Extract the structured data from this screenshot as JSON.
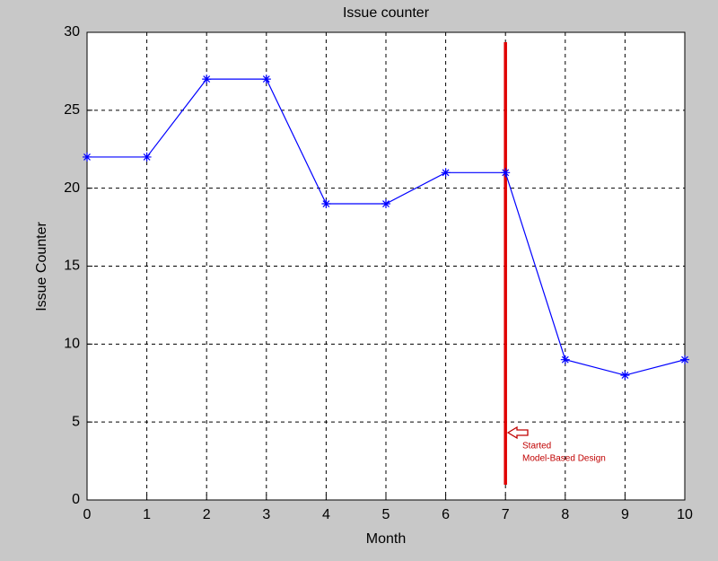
{
  "chart_data": {
    "type": "line",
    "title": "Issue counter",
    "x_label": "Month",
    "y_label": "Issue Counter",
    "x": [
      0,
      1,
      2,
      3,
      4,
      5,
      6,
      7,
      8,
      9,
      10
    ],
    "series": [
      {
        "name": "Issue Counter",
        "color": "#0000ff",
        "values": [
          22,
          22,
          27,
          27,
          19,
          19,
          21,
          21,
          9,
          8,
          9
        ]
      }
    ],
    "xlim": [
      0,
      10
    ],
    "xticks": [
      0,
      1,
      2,
      3,
      4,
      5,
      6,
      7,
      8,
      9,
      10
    ],
    "ylim": [
      0,
      30
    ],
    "yticks": [
      0,
      5,
      10,
      15,
      20,
      25,
      30
    ],
    "grid": true,
    "vline": {
      "x": 7,
      "color": "#e00000"
    },
    "annotation": [
      "Started",
      "Model-Based Design"
    ]
  }
}
